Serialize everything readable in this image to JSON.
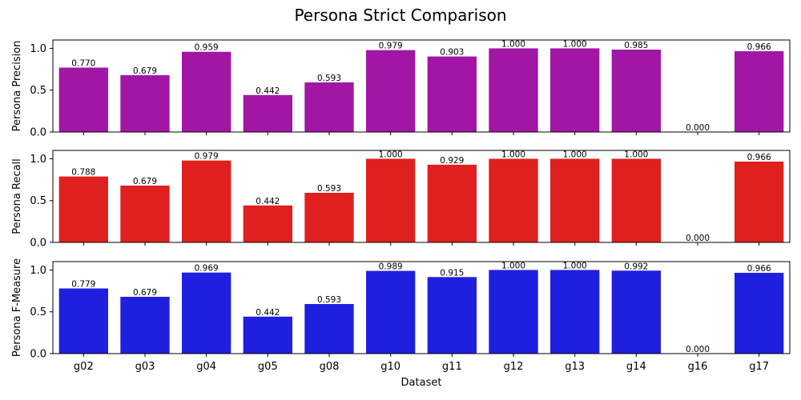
{
  "chart_data": {
    "type": "bar",
    "title": "Persona Strict Comparison",
    "xlabel": "Dataset",
    "categories": [
      "g02",
      "g03",
      "g04",
      "g05",
      "g08",
      "g10",
      "g11",
      "g12",
      "g13",
      "g14",
      "g16",
      "g17"
    ],
    "ylim": [
      0,
      1.1
    ],
    "yticks": [
      "0.0",
      "0.5",
      "1.0"
    ],
    "grid": false,
    "series": [
      {
        "name": "Persona Precision",
        "ylabel": "Persona Precision",
        "color": "#a216a6",
        "values": [
          0.77,
          0.679,
          0.959,
          0.442,
          0.593,
          0.979,
          0.903,
          1.0,
          1.0,
          0.985,
          0.0,
          0.966
        ],
        "labels": [
          "0.770",
          "0.679",
          "0.959",
          "0.442",
          "0.593",
          "0.979",
          "0.903",
          "1.000",
          "1.000",
          "0.985",
          "0.000",
          "0.966"
        ]
      },
      {
        "name": "Persona Recall",
        "ylabel": "Persona Recall",
        "color": "#e01f1f",
        "values": [
          0.788,
          0.679,
          0.979,
          0.442,
          0.593,
          1.0,
          0.929,
          1.0,
          1.0,
          1.0,
          0.0,
          0.966
        ],
        "labels": [
          "0.788",
          "0.679",
          "0.979",
          "0.442",
          "0.593",
          "1.000",
          "0.929",
          "1.000",
          "1.000",
          "1.000",
          "0.000",
          "0.966"
        ]
      },
      {
        "name": "Persona F-Measure",
        "ylabel": "Persona F-Measure",
        "color": "#1f1fe0",
        "values": [
          0.779,
          0.679,
          0.969,
          0.442,
          0.593,
          0.989,
          0.915,
          1.0,
          1.0,
          0.992,
          0.0,
          0.966
        ],
        "labels": [
          "0.779",
          "0.679",
          "0.969",
          "0.442",
          "0.593",
          "0.989",
          "0.915",
          "1.000",
          "1.000",
          "0.992",
          "0.000",
          "0.966"
        ]
      }
    ]
  }
}
